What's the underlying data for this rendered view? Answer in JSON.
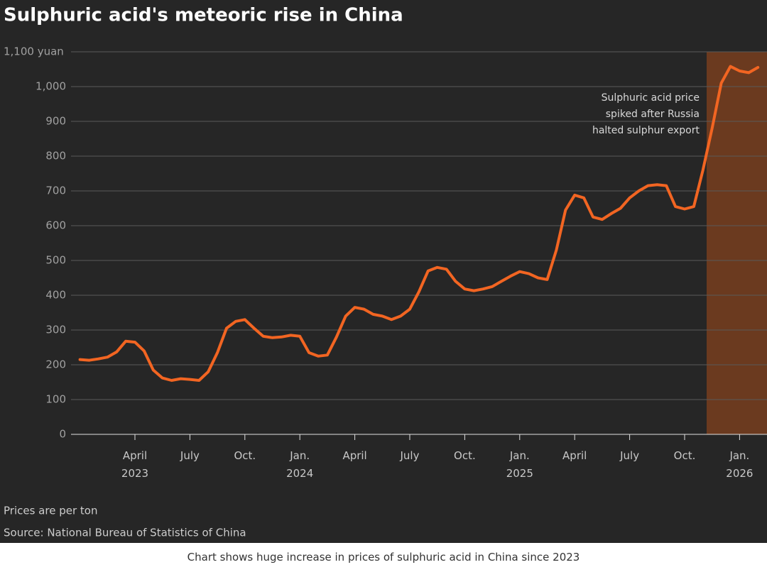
{
  "chart_data": {
    "type": "line",
    "title": "Sulphuric acid's meteoric rise in China",
    "annotation": "Sulphuric acid price\nspiked after Russia\nhalted sulphur export",
    "note": "Prices are per ton",
    "source": "Source: National Bureau of Statistics of China",
    "categories": [
      null,
      null,
      null,
      null,
      null,
      null,
      "April\n2023",
      null,
      null,
      null,
      null,
      null,
      "July",
      null,
      null,
      null,
      null,
      null,
      "Oct.",
      null,
      null,
      null,
      null,
      null,
      "Jan.\n2024",
      null,
      null,
      null,
      null,
      null,
      "April",
      null,
      null,
      null,
      null,
      null,
      "July",
      null,
      null,
      null,
      null,
      null,
      "Oct.",
      null,
      null,
      null,
      null,
      null,
      "Jan.\n2025",
      null,
      null,
      null,
      null,
      null,
      "April",
      null,
      null,
      null,
      null,
      null,
      "July",
      null,
      null,
      null,
      null,
      null,
      "Oct.",
      null,
      null,
      null,
      null,
      null,
      "Jan.\n2026",
      null,
      null
    ],
    "values": [
      215,
      213,
      217,
      222,
      237,
      268,
      265,
      240,
      185,
      162,
      155,
      160,
      158,
      155,
      180,
      235,
      305,
      325,
      330,
      305,
      282,
      278,
      280,
      285,
      282,
      235,
      225,
      228,
      280,
      340,
      365,
      360,
      345,
      340,
      330,
      340,
      360,
      410,
      470,
      480,
      475,
      440,
      418,
      413,
      418,
      425,
      440,
      455,
      468,
      462,
      450,
      445,
      530,
      645,
      688,
      680,
      625,
      618,
      635,
      650,
      680,
      700,
      715,
      718,
      715,
      655,
      648,
      655,
      760,
      880,
      1010,
      1058,
      1045,
      1040,
      1055
    ],
    "color": "#f26522",
    "ylim": [
      0,
      1100
    ],
    "yticks": [
      0,
      100,
      200,
      300,
      400,
      500,
      600,
      700,
      800,
      900,
      {
        "value": 1000,
        "label": "1,000"
      },
      {
        "value": 1100,
        "label": "1,100 yuan"
      }
    ],
    "grid": true
  },
  "caption": "Chart shows huge increase in prices of sulphuric acid in China since 2023"
}
